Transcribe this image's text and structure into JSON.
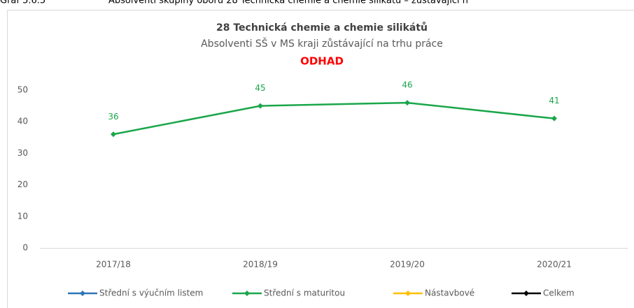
{
  "caption": {
    "number": "Graf 5.6.5",
    "text": "Absolventi skupiny oborů 28 Technická chemie a chemie silikátů – zůstávající n"
  },
  "chart_data": {
    "type": "line",
    "title": "28 Technická chemie a chemie silikátů",
    "subtitle": "Absolventi SŠ v MS kraji  zůstávající na trhu práce",
    "annotation": "ODHAD",
    "categories": [
      "2017/18",
      "2018/19",
      "2019/20",
      "2020/21"
    ],
    "series": [
      {
        "name": "Střední s výučním listem",
        "color": "#2e75b6",
        "values": [
          null,
          null,
          null,
          null
        ]
      },
      {
        "name": "Střední s maturitou",
        "color": "#1aa64a",
        "values": [
          36,
          45,
          46,
          41
        ]
      },
      {
        "name": "Nástavbové",
        "color": "#ffc000",
        "values": [
          null,
          null,
          null,
          null
        ]
      },
      {
        "name": "Celkem",
        "color": "#000000",
        "values": [
          null,
          null,
          null,
          null
        ]
      }
    ],
    "ylim": [
      0,
      50
    ],
    "yticks": [
      0,
      10,
      20,
      30,
      40,
      50
    ],
    "grid": false,
    "data_labels": true,
    "legend": "bottom"
  }
}
